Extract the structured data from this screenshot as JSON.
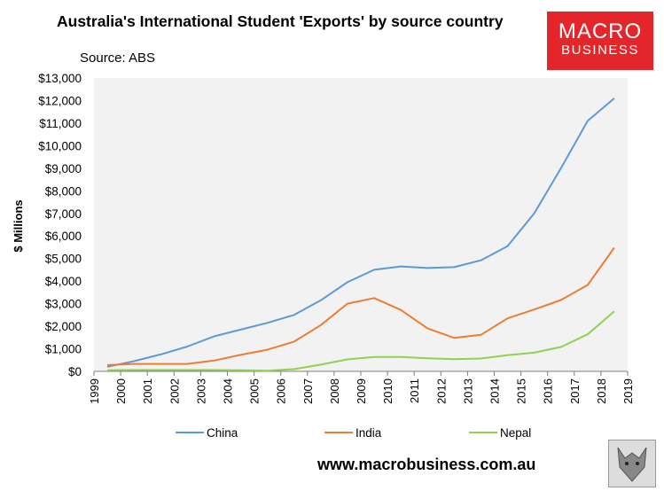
{
  "header": {
    "title": "Australia's International Student 'Exports' by source country",
    "subtitle": "Source: ABS"
  },
  "logo": {
    "line1": "MACRO",
    "line2": "BUSINESS"
  },
  "footer": {
    "url": "www.macrobusiness.com.au"
  },
  "chart_data": {
    "type": "line",
    "title": "Australia's International Student 'Exports' by source country",
    "ylabel": "$ Millions",
    "xlabel": "",
    "xlim": [
      1999,
      2019
    ],
    "ylim": [
      0,
      13000
    ],
    "x_ticks": [
      "1999",
      "2000",
      "2001",
      "2002",
      "2003",
      "2004",
      "2005",
      "2006",
      "2007",
      "2008",
      "2009",
      "2010",
      "2011",
      "2012",
      "2013",
      "2014",
      "2015",
      "2016",
      "2017",
      "2018",
      "2019"
    ],
    "y_ticks": [
      "$0",
      "$1,000",
      "$2,000",
      "$3,000",
      "$4,000",
      "$5,000",
      "$6,000",
      "$7,000",
      "$8,000",
      "$9,000",
      "$10,000",
      "$11,000",
      "$12,000",
      "$13,000"
    ],
    "x": [
      1999.5,
      2000.5,
      2001.5,
      2002.5,
      2003.5,
      2004.5,
      2005.5,
      2006.5,
      2007.5,
      2008.5,
      2009.5,
      2010.5,
      2011.5,
      2012.5,
      2013.5,
      2014.5,
      2015.5,
      2016.5,
      2017.5,
      2018.5
    ],
    "series": [
      {
        "name": "China",
        "color": "#5b9bd5",
        "values": [
          200,
          450,
          750,
          1100,
          1550,
          1850,
          2150,
          2500,
          3150,
          3950,
          4500,
          4650,
          4580,
          4620,
          4920,
          5550,
          7000,
          9000,
          11100,
          12100
        ]
      },
      {
        "name": "India",
        "color": "#ed7d31",
        "values": [
          280,
          330,
          330,
          330,
          480,
          730,
          960,
          1320,
          2050,
          3000,
          3250,
          2720,
          1900,
          1480,
          1620,
          2350,
          2740,
          3160,
          3830,
          5480
        ]
      },
      {
        "name": "Nepal",
        "color": "#92d050",
        "values": [
          50,
          60,
          60,
          60,
          60,
          50,
          30,
          100,
          300,
          530,
          640,
          640,
          580,
          540,
          570,
          720,
          830,
          1080,
          1640,
          2660
        ]
      }
    ],
    "grid": false,
    "legend": "bottom",
    "plot_background": "#f2f2f2"
  }
}
